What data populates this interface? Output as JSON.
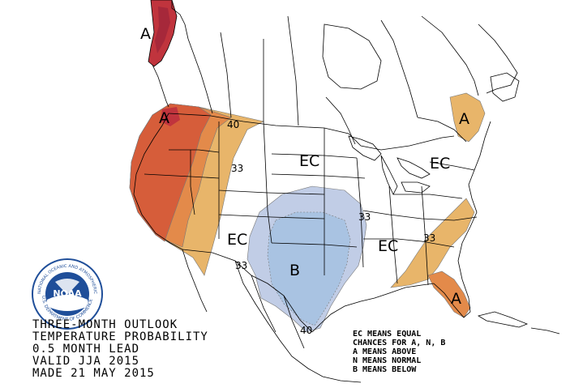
{
  "title_lines": [
    "THREE-MONTH OUTLOOK",
    "TEMPERATURE PROBABILITY",
    "0.5 MONTH LEAD",
    "VALID JJA 2015",
    "MADE 21 MAY 2015"
  ],
  "legend_lines": [
    "EC MEANS EQUAL",
    "CHANCES FOR A, N, B",
    "A MEANS ABOVE",
    "N MEANS NORMAL",
    "B MEANS BELOW"
  ],
  "logo": {
    "center_text": "NOAA",
    "ring_top": "NATIONAL OCEANIC AND ATMOSPHERIC ADMINISTRATION",
    "ring_bottom": "U.S. DEPARTMENT OF COMMERCE"
  },
  "region_labels": {
    "alaska_above": "A",
    "northwest_above": "A",
    "northeast_above": "A",
    "florida_above": "A",
    "south_central_below": "B",
    "north_central_ec": "EC",
    "east_ec": "EC",
    "southwest_ec": "EC",
    "southeast_ec": "EC"
  },
  "contour_labels": {
    "northwest_40": "40",
    "northwest_33": "33",
    "southwest_33": "33",
    "central_33": "33",
    "southeast_33": "33",
    "texas_40": "40"
  },
  "colors": {
    "above_33": "#e8b56a",
    "above_40": "#e38a4a",
    "above_50": "#d65d3a",
    "above_60": "#c0343d",
    "below_33": "#c1cde6",
    "below_40": "#a9c3e2",
    "land_line": "#000000",
    "background": "#ffffff",
    "noaa_blue": "#1f4e99"
  }
}
